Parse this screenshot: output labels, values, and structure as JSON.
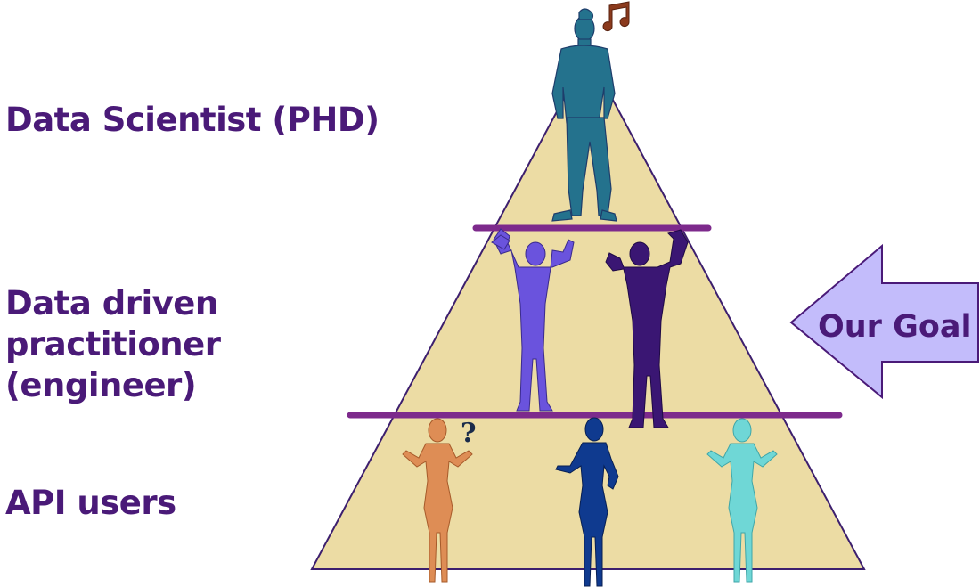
{
  "levels": {
    "top": "Data Scientist (PHD)",
    "middle": "Data driven practitioner (engineer)",
    "bottom": "API users"
  },
  "goal_arrow": {
    "label": "Our Goal"
  },
  "colors": {
    "pyramid_fill": "#ecdca4",
    "pyramid_outline": "#3d1f6e",
    "divider": "#7d2a8c",
    "label_text": "#4a1a78",
    "arrow_fill": "#c3bcfb",
    "scientist": "#24728d",
    "note_icon": "#8b3a1d",
    "muscle_left": "#6a53dd",
    "muscle_right": "#3a1673",
    "woman_orange": "#de8d55",
    "woman_blue": "#0f3a8f",
    "woman_cyan": "#6fd7d6"
  },
  "icons": [
    "music-note-icon",
    "question-mark-icon"
  ]
}
